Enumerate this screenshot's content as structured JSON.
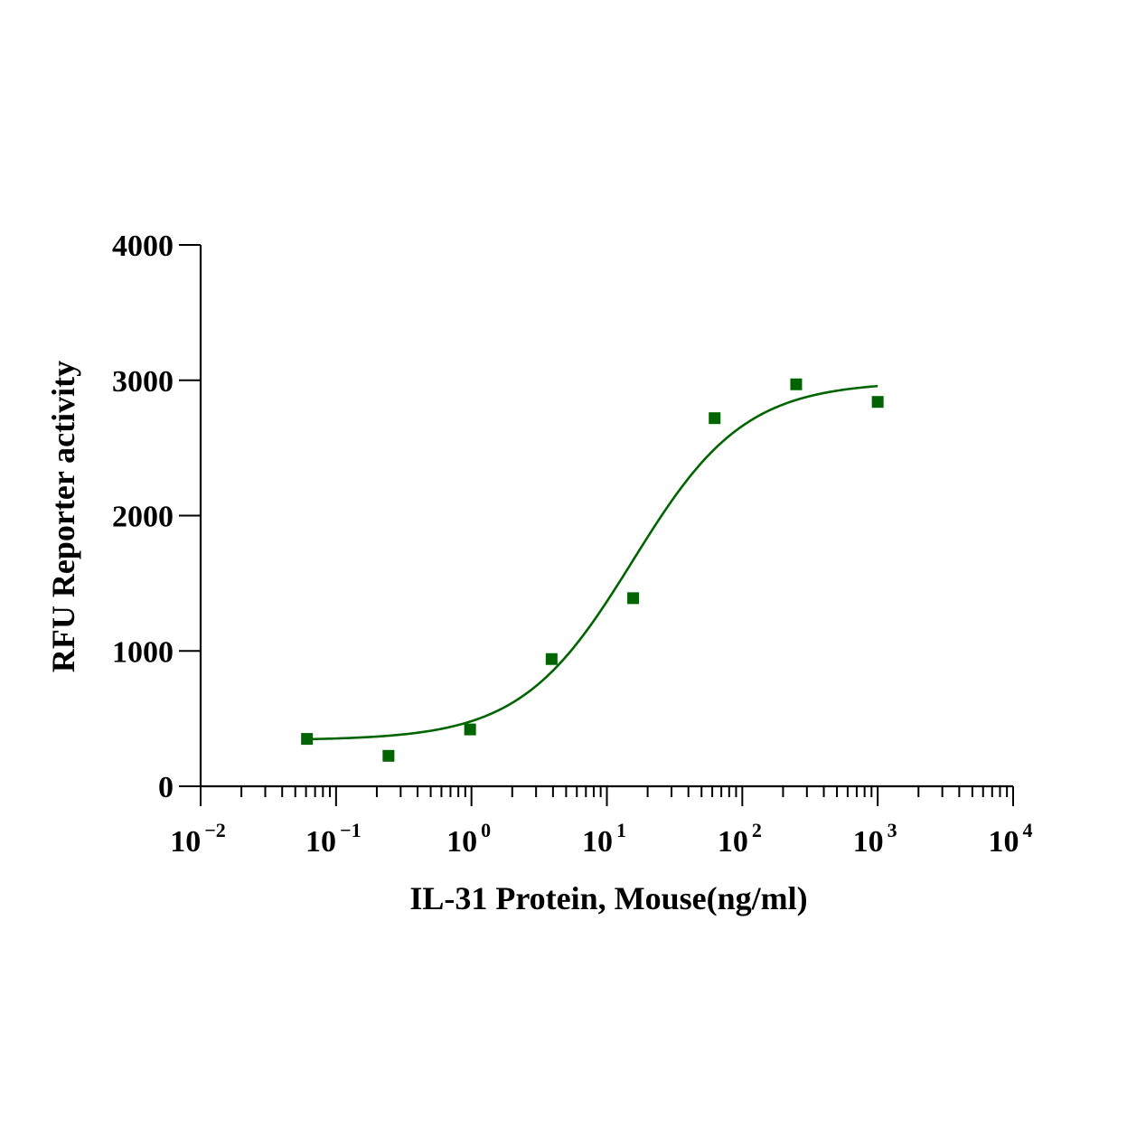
{
  "chart_data": {
    "type": "scatter",
    "xscale": "log",
    "xlabel": "IL-31 Protein, Mouse(ng/ml)",
    "ylabel": "RFU Reporter activity",
    "xlim": [
      0.01,
      10000
    ],
    "ylim": [
      0,
      4000
    ],
    "yticks": [
      0,
      1000,
      2000,
      3000,
      4000
    ],
    "xticks": [
      {
        "base": "10",
        "exp": "-2",
        "value": 0.01
      },
      {
        "base": "10",
        "exp": "-1",
        "value": 0.1
      },
      {
        "base": "10",
        "exp": "0",
        "value": 1
      },
      {
        "base": "10",
        "exp": "1",
        "value": 10
      },
      {
        "base": "10",
        "exp": "2",
        "value": 100
      },
      {
        "base": "10",
        "exp": "3",
        "value": 1000
      },
      {
        "base": "10",
        "exp": "4",
        "value": 10000
      }
    ],
    "grid": false,
    "color": "#006400",
    "points": [
      {
        "x": 0.061,
        "y": 350
      },
      {
        "x": 0.244,
        "y": 225
      },
      {
        "x": 0.977,
        "y": 420
      },
      {
        "x": 3.906,
        "y": 940
      },
      {
        "x": 15.63,
        "y": 1390
      },
      {
        "x": 62.5,
        "y": 2720
      },
      {
        "x": 250,
        "y": 2970
      },
      {
        "x": 1000,
        "y": 2840
      }
    ],
    "fit": {
      "model": "4PL",
      "bottom": 340,
      "top": 2990,
      "ec50": 15.5,
      "hill": 1.05,
      "x_range": [
        0.061,
        1000
      ]
    }
  }
}
